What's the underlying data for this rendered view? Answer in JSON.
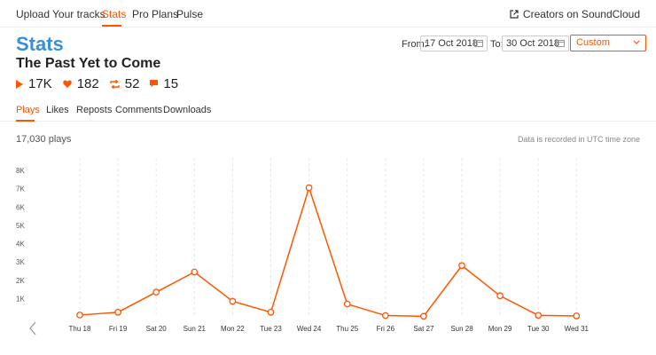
{
  "nav": {
    "items": [
      "Upload",
      "Your tracks",
      "Stats",
      "Pro Plans",
      "Pulse"
    ],
    "creators_label": "Creators on SoundCloud"
  },
  "header": {
    "title": "Stats",
    "track_title": "The Past Yet to Come",
    "metrics": {
      "plays": "17K",
      "likes": "182",
      "reposts": "52",
      "comments": "15"
    }
  },
  "date_range": {
    "from_label": "From:",
    "from_value": "17 Oct 2018",
    "to_label": "To:",
    "to_value": "30 Oct 2018",
    "preset": "Custom"
  },
  "tabs": [
    "Plays",
    "Likes",
    "Reposts",
    "Comments",
    "Downloads"
  ],
  "summary": {
    "plays_count": "17,030 plays",
    "utc_note": "Data is recorded in UTC time zone"
  },
  "colors": {
    "accent": "#ff5500",
    "title_blue": "#3a8fd9"
  },
  "chart_data": {
    "type": "line",
    "categories": [
      "Thu 18",
      "Fri 19",
      "Sat 20",
      "Sun 21",
      "Mon 22",
      "Tue 23",
      "Wed 24",
      "Thu 25",
      "Fri 26",
      "Sat 27",
      "Sun 28",
      "Mon 29",
      "Tue 30",
      "Wed 31"
    ],
    "values": [
      100,
      250,
      1350,
      2450,
      850,
      250,
      7050,
      700,
      70,
      30,
      2800,
      1150,
      80,
      50
    ],
    "yticks": [
      "1K",
      "2K",
      "3K",
      "4K",
      "5K",
      "6K",
      "7K",
      "8K"
    ],
    "ylim": [
      0,
      8000
    ],
    "grid": "vertical-dashed"
  }
}
